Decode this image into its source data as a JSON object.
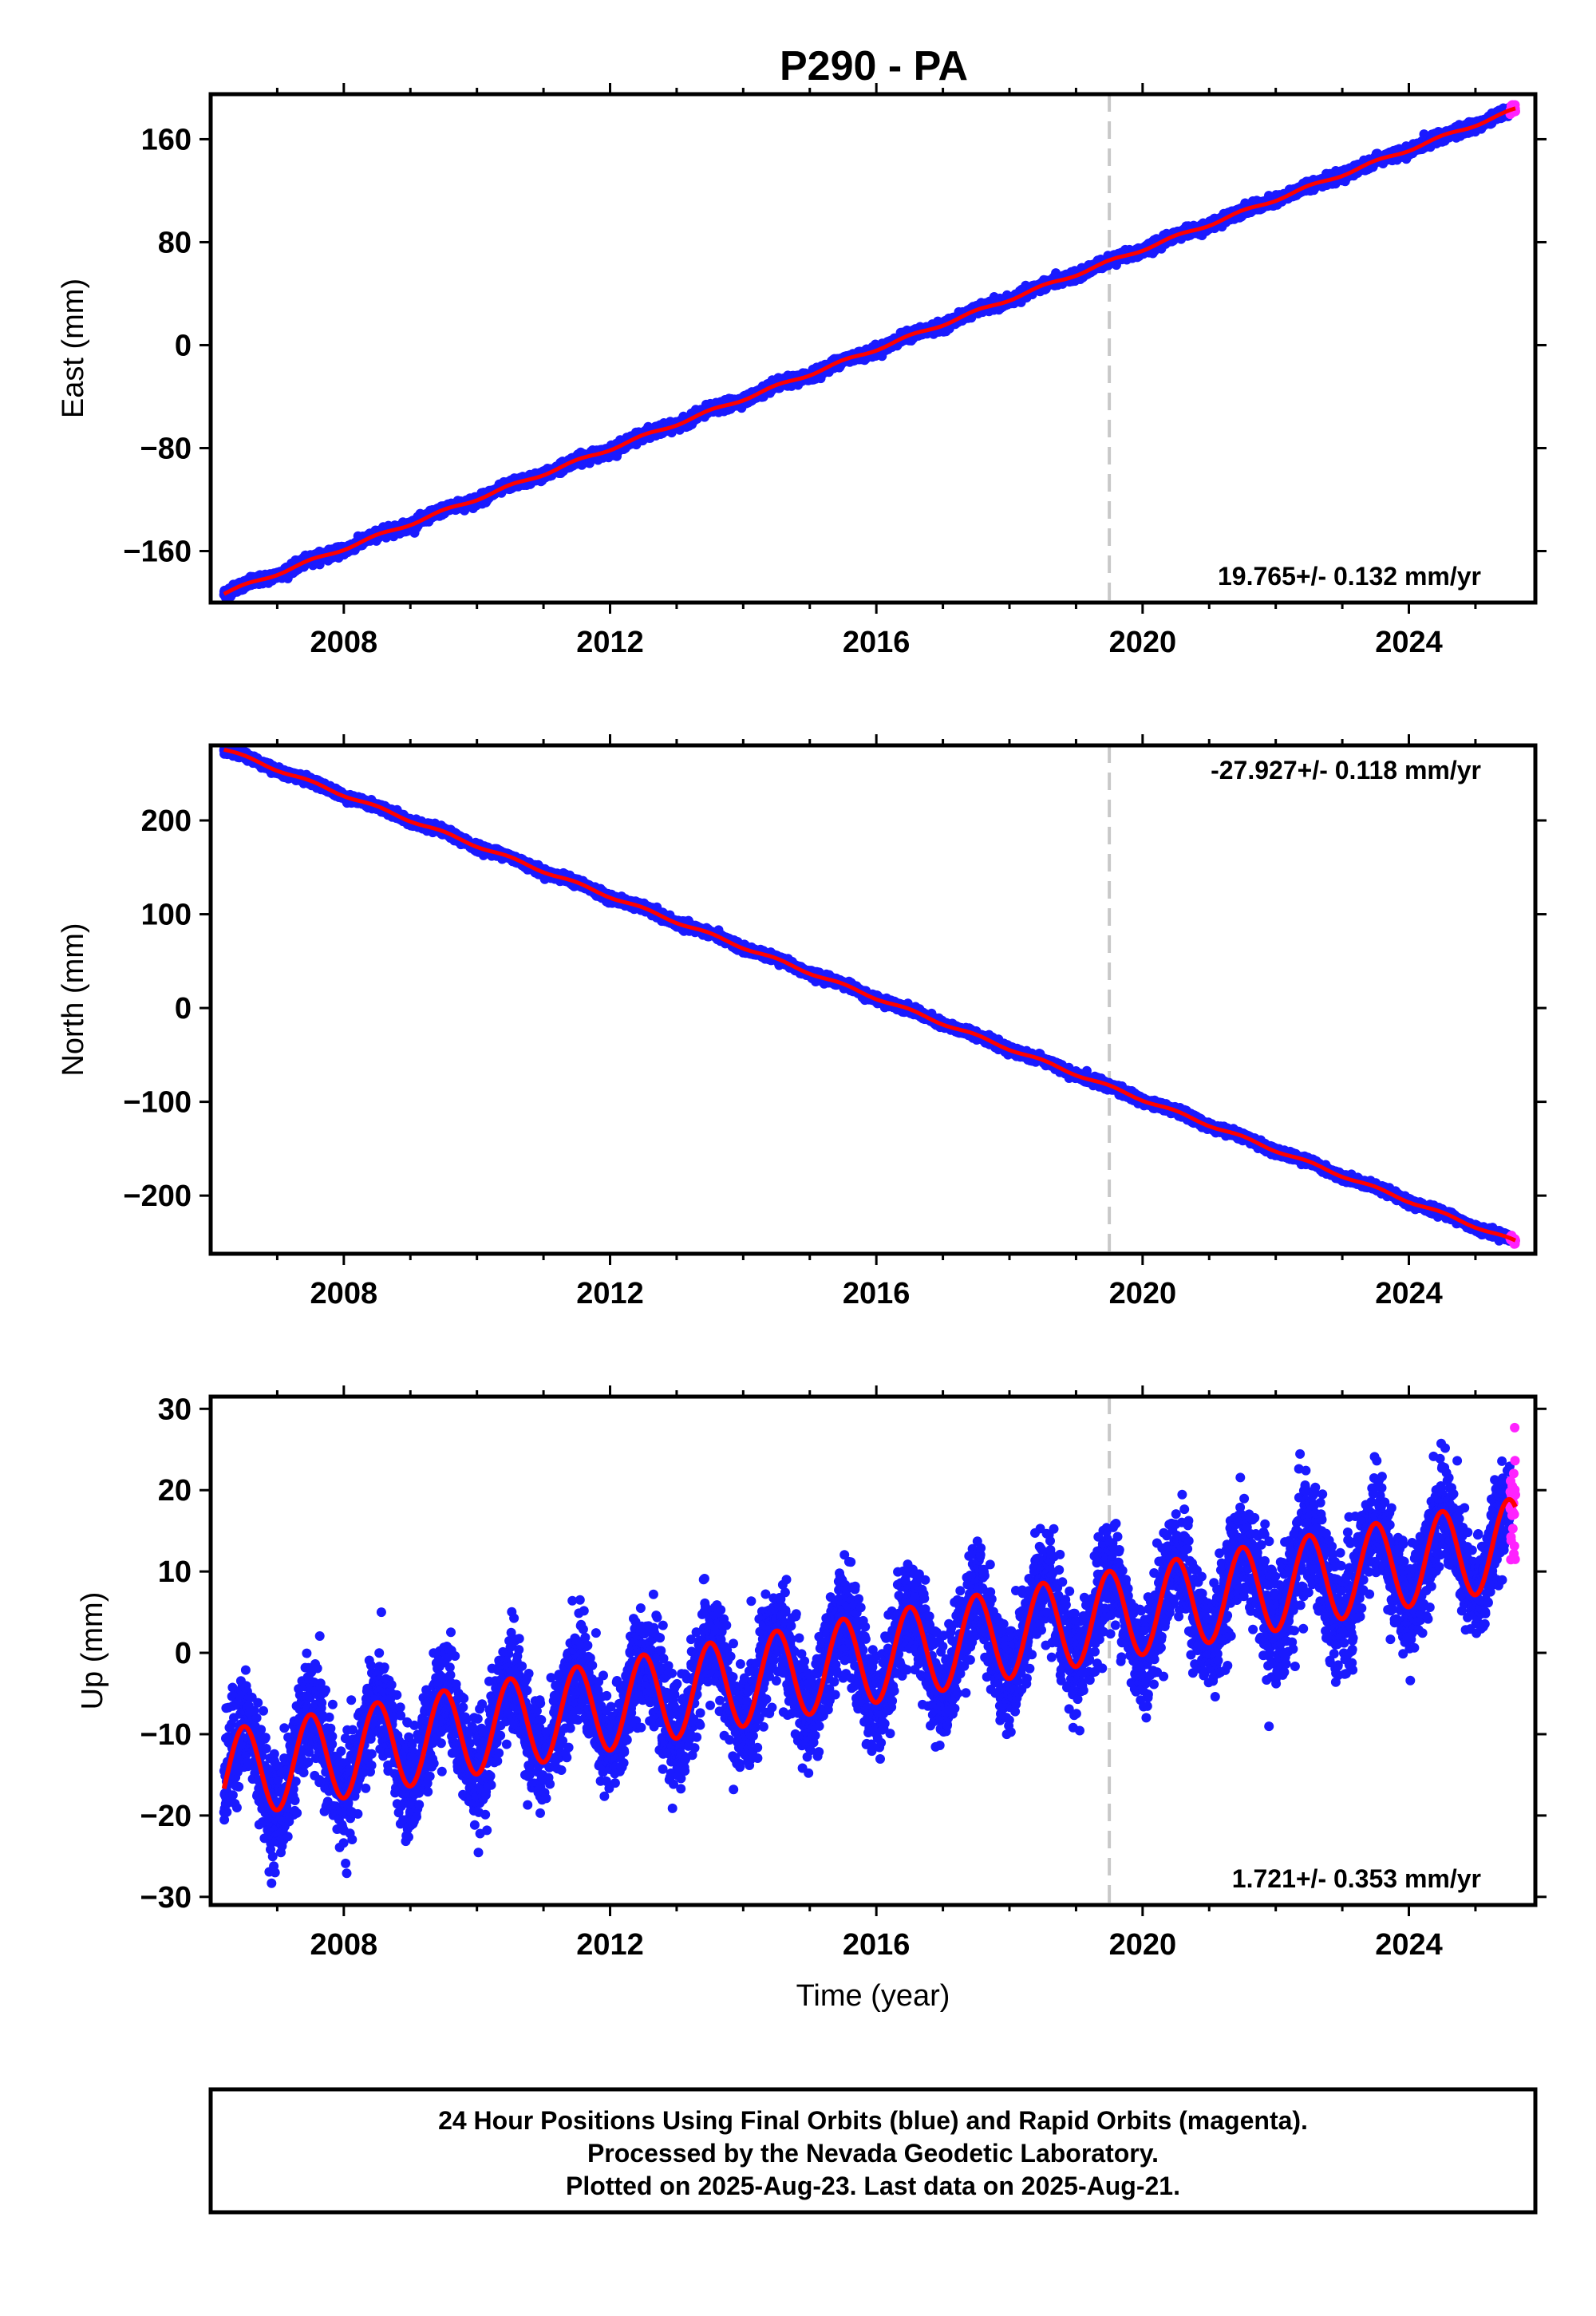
{
  "title": "P290 - PA",
  "colors": {
    "final": "#1a1aff",
    "rapid": "#ff22ff",
    "model": "#ff0000",
    "guide": "#c8c8c8"
  },
  "chart_data": [
    {
      "type": "scatter",
      "ylabel": "East (mm)",
      "xlabel": "",
      "xlim": [
        2006.0,
        2025.9
      ],
      "ylim": [
        -200,
        195
      ],
      "x_ticks": [
        2008,
        2012,
        2016,
        2020,
        2024
      ],
      "y_ticks": [
        160,
        80,
        0,
        -80,
        -160
      ],
      "y_tick_labels": [
        "160",
        "80",
        "0",
        "−80",
        "−160"
      ],
      "rate_label": "19.765+/- 0.132 mm/yr",
      "rate_position": "bottom-right",
      "vertical_line_x": 2019.5,
      "start": {
        "x": 2006.2,
        "y": -193
      },
      "end": {
        "x": 2025.6,
        "y": 183
      },
      "annual_amplitude": 1.2,
      "noise": 1.8
    },
    {
      "type": "scatter",
      "ylabel": "North (mm)",
      "xlabel": "",
      "xlim": [
        2006.0,
        2025.9
      ],
      "ylim": [
        -262,
        280
      ],
      "x_ticks": [
        2008,
        2012,
        2016,
        2020,
        2024
      ],
      "y_ticks": [
        200,
        100,
        0,
        -100,
        -200
      ],
      "y_tick_labels": [
        "200",
        "100",
        "0",
        "−100",
        "−200"
      ],
      "rate_label": "-27.927+/- 0.118 mm/yr",
      "rate_position": "top-right",
      "vertical_line_x": 2019.5,
      "start": {
        "x": 2006.2,
        "y": 276
      },
      "end": {
        "x": 2025.6,
        "y": -249
      },
      "annual_amplitude": 1.5,
      "noise": 2.0
    },
    {
      "type": "scatter",
      "ylabel": "Up (mm)",
      "xlabel": "Time (year)",
      "xlim": [
        2006.0,
        2025.9
      ],
      "ylim": [
        -31,
        31.5
      ],
      "x_ticks": [
        2008,
        2012,
        2016,
        2020,
        2024
      ],
      "y_ticks": [
        30,
        20,
        10,
        0,
        -10,
        -20,
        -30
      ],
      "y_tick_labels": [
        "30",
        "20",
        "10",
        "0",
        "−10",
        "−20",
        "−30"
      ],
      "rate_label": "1.721+/- 0.353 mm/yr",
      "rate_position": "bottom-right",
      "vertical_line_x": 2019.5,
      "start": {
        "x": 2006.2,
        "y": -15
      },
      "end": {
        "x": 2025.6,
        "y": 13.5
      },
      "annual_amplitude": 5.5,
      "noise": 3.2
    }
  ],
  "caption": {
    "line1": "24 Hour Positions Using Final Orbits (blue) and Rapid Orbits (magenta).",
    "line2": "Processed by the Nevada Geodetic Laboratory.",
    "line3": "Plotted on 2025-Aug-23. Last data on 2025-Aug-21."
  }
}
